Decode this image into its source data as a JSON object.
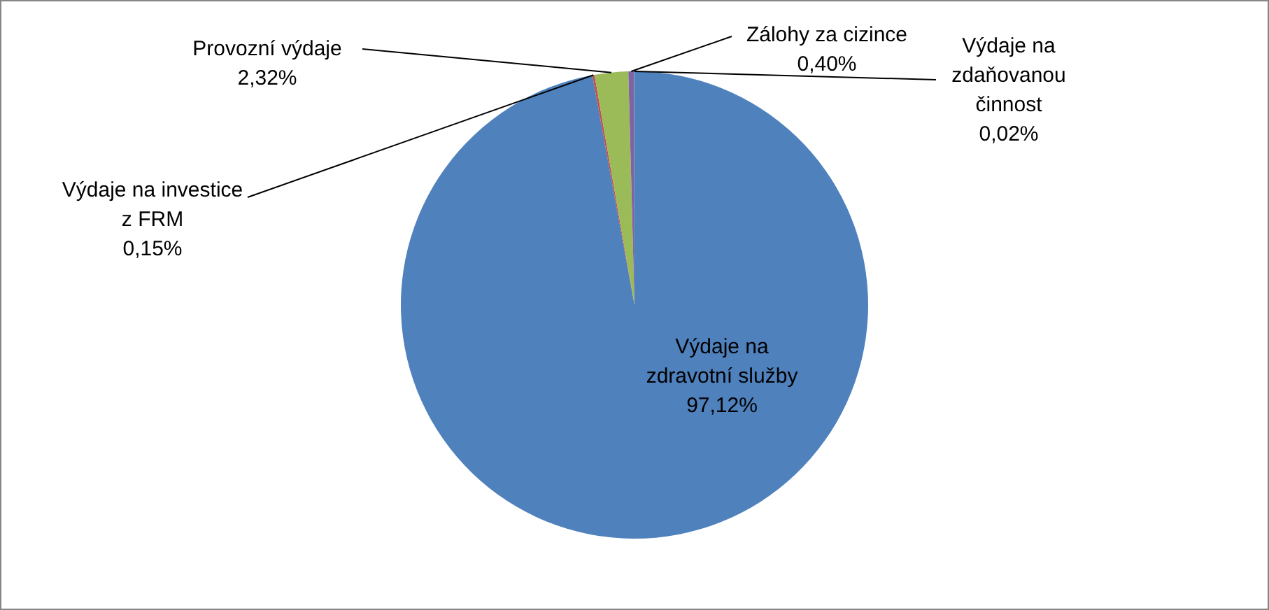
{
  "chart_data": {
    "type": "pie",
    "categories": [
      "Výdaje na zdravotní služby",
      "Výdaje na investice z FRM",
      "Provozní výdaje",
      "Zálohy za cizince",
      "Výdaje na zdaňovanou činnost"
    ],
    "values": [
      97.12,
      0.15,
      2.32,
      0.4,
      0.02
    ],
    "colors": [
      "#4f81bd",
      "#c0504d",
      "#9bbb59",
      "#8064a2",
      "#4bacc6"
    ],
    "value_labels": [
      "97,12%",
      "0,15%",
      "2,32%",
      "0,40%",
      "0,02%"
    ],
    "legend": false
  }
}
